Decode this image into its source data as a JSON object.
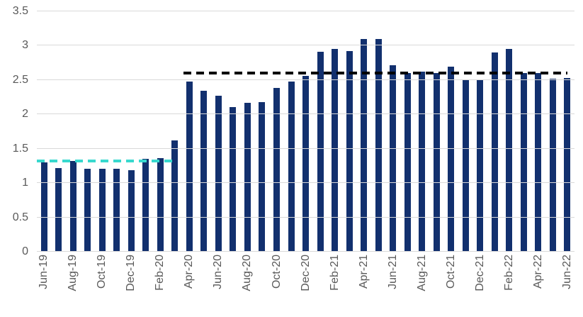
{
  "chart_data": {
    "type": "bar",
    "title": "",
    "xlabel": "",
    "ylabel": "",
    "grid": true,
    "ylim": [
      0,
      3.5
    ],
    "yticks": [
      0,
      0.5,
      1,
      1.5,
      2,
      2.5,
      3,
      3.5
    ],
    "x_label_every": 2,
    "categories": [
      "Jun-19",
      "Jul-19",
      "Aug-19",
      "Sep-19",
      "Oct-19",
      "Nov-19",
      "Dec-19",
      "Jan-20",
      "Feb-20",
      "Mar-20",
      "Apr-20",
      "May-20",
      "Jun-20",
      "Jul-20",
      "Aug-20",
      "Sep-20",
      "Oct-20",
      "Nov-20",
      "Dec-20",
      "Jan-21",
      "Feb-21",
      "Mar-21",
      "Apr-21",
      "May-21",
      "Jun-21",
      "Jul-21",
      "Aug-21",
      "Sep-21",
      "Oct-21",
      "Nov-21",
      "Dec-21",
      "Jan-22",
      "Feb-22",
      "Mar-22",
      "Apr-22",
      "May-22",
      "Jun-22"
    ],
    "values": [
      1.3,
      1.22,
      1.32,
      1.21,
      1.21,
      1.21,
      1.19,
      1.35,
      1.36,
      1.62,
      2.48,
      2.34,
      2.27,
      2.11,
      2.17,
      2.18,
      2.38,
      2.48,
      2.56,
      2.91,
      2.95,
      2.92,
      3.1,
      3.1,
      2.72,
      2.6,
      2.62,
      2.6,
      2.7,
      2.51,
      2.5,
      2.9,
      2.95,
      2.6,
      2.6,
      2.52,
      2.53
    ],
    "annotations": [
      {
        "name": "pre-period-average-line",
        "value": 1.32,
        "start_index": 0,
        "end_index": 9.5,
        "color": "#38D9CE",
        "style": "dashed"
      },
      {
        "name": "post-period-average-line",
        "value": 2.6,
        "start_index": 10.1,
        "end_index": 36.5,
        "color": "#000000",
        "style": "dashed"
      }
    ],
    "legend": [],
    "colors": {
      "bar": "#12306E",
      "gridline": "#D9D9D9",
      "axis_text": "#595959",
      "background": "#FFFFFF"
    }
  }
}
